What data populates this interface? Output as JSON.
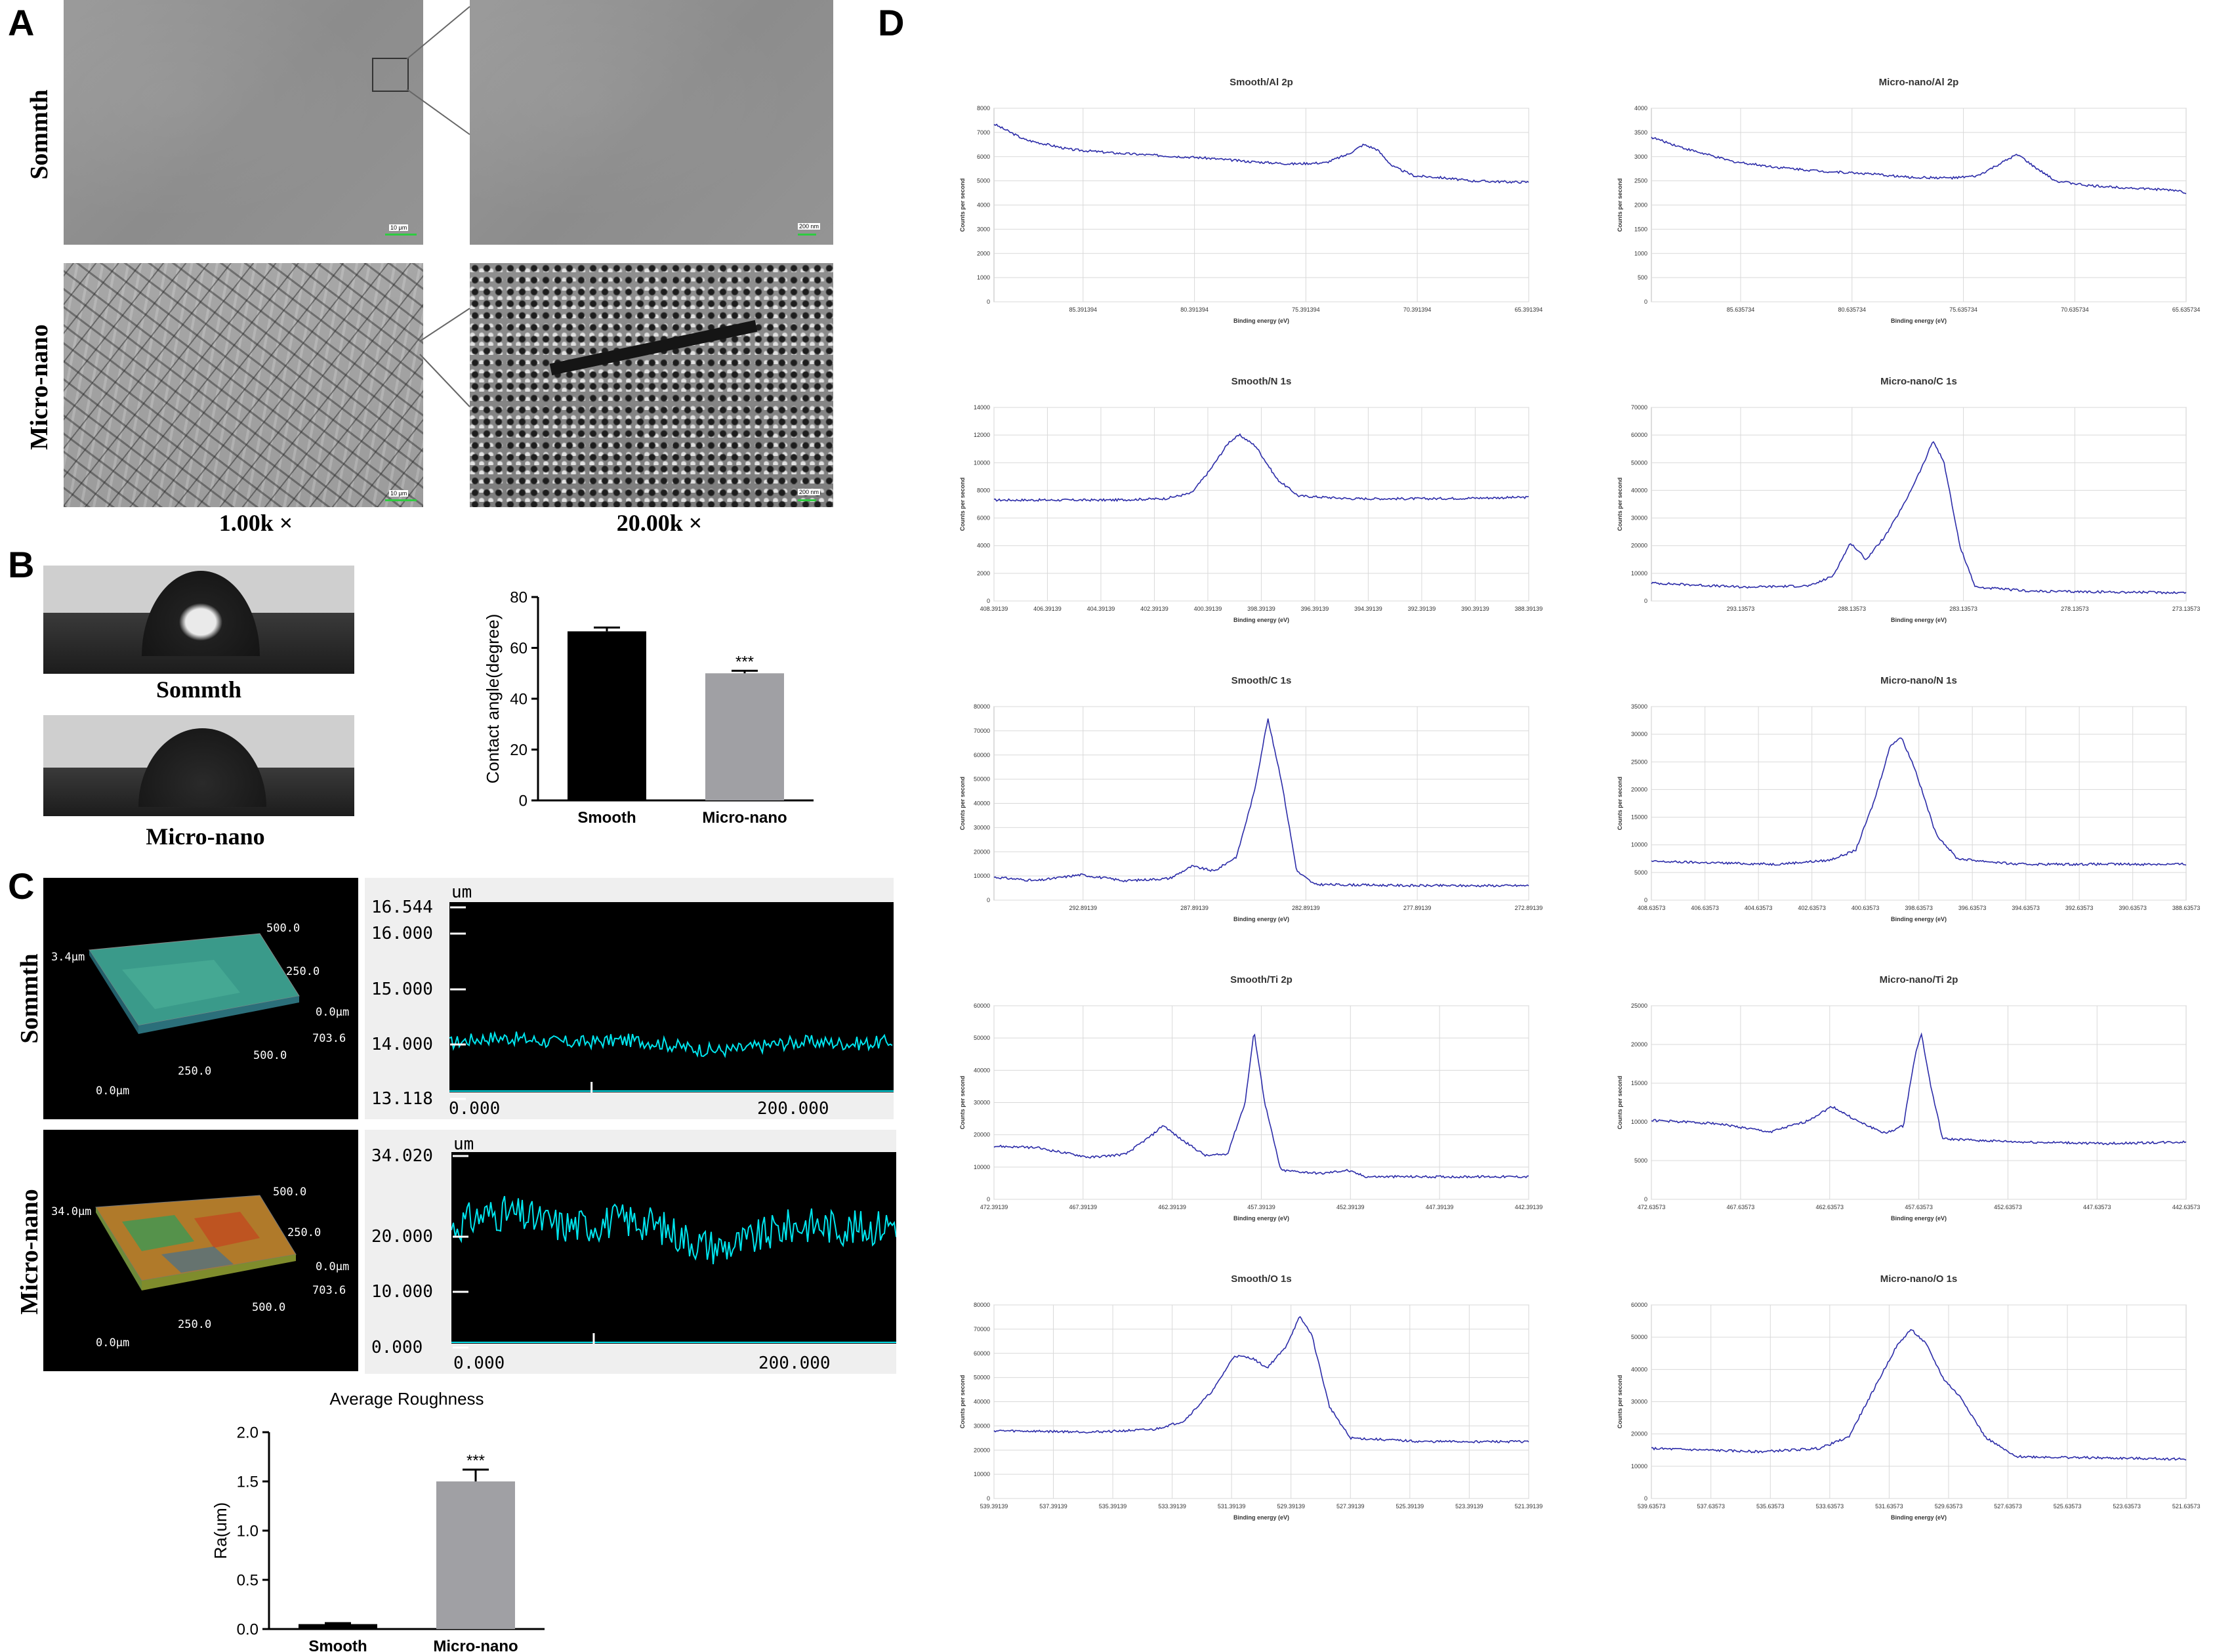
{
  "panels": {
    "A": {
      "label": "A",
      "rows": [
        "Sommth",
        "Micro-nano"
      ],
      "magnifications": [
        "1.00k ×",
        "20.00k ×"
      ],
      "scale_low": "10 μm",
      "scale_high": "200 nm"
    },
    "B": {
      "label": "B",
      "images": [
        "Sommth",
        "Micro-nano"
      ]
    },
    "C": {
      "label": "C",
      "rows": [
        "Sommth",
        "Micro-nano"
      ],
      "surface_3d": [
        {
          "z_max": "3.4μm",
          "y_mid": "250.0",
          "y_max": "500.0",
          "x_mid": "250.0",
          "x_max": "500.0",
          "x_end": "703.6",
          "origin": "0.0μm",
          "y0": "0.0μm"
        },
        {
          "z_max": "34.0μm",
          "y_mid": "250.0",
          "y_max": "500.0",
          "x_mid": "250.0",
          "x_max": "500.0",
          "x_end": "703.6",
          "origin": "0.0μm",
          "y0": "0.0μm"
        }
      ],
      "profiles": [
        {
          "unit": "um",
          "y_ticks": [
            "16.544",
            "16.000",
            "15.000",
            "14.000",
            "13.118"
          ],
          "x_ticks": [
            "0.000",
            "200.000"
          ]
        },
        {
          "unit": "um",
          "y_ticks": [
            "34.020",
            "20.000",
            "10.000",
            "0.000"
          ],
          "x_ticks": [
            "0.000",
            "200.000"
          ]
        }
      ]
    },
    "D": {
      "label": "D",
      "x_axis_label": "Binding energy (eV)",
      "y_axis_label": "Counts per second"
    }
  },
  "chart_data": [
    {
      "id": "contact-angle",
      "type": "bar",
      "categories": [
        "Smooth",
        "Micro-nano"
      ],
      "values": [
        66.5,
        50
      ],
      "errors": [
        1.5,
        1
      ],
      "significance": [
        "",
        "***"
      ],
      "colors": [
        "#000000",
        "#a0a0a4"
      ],
      "ylabel": "Contact angle(degree)",
      "ylim": [
        0,
        80
      ],
      "yticks": [
        0,
        20,
        40,
        60,
        80
      ]
    },
    {
      "id": "average-roughness",
      "type": "bar",
      "title": "Average Roughness",
      "categories": [
        "Smooth",
        "Micro-nano"
      ],
      "values": [
        0.05,
        1.5
      ],
      "errors": [
        0.01,
        0.12
      ],
      "significance": [
        "",
        "***"
      ],
      "colors": [
        "#000000",
        "#a0a0a4"
      ],
      "ylabel": "Ra(um)",
      "ylim": [
        0,
        2.0
      ],
      "yticks": [
        "0.0",
        "0.5",
        "1.0",
        "1.5",
        "2.0"
      ]
    },
    {
      "id": "xps-smooth-al2p",
      "type": "line",
      "title": "Smooth/Al 2p",
      "ylim": [
        0,
        8000
      ],
      "yticks": [
        0,
        1000,
        2000,
        3000,
        4000,
        5000,
        6000,
        7000,
        8000
      ],
      "xticks": [
        "85.391394",
        "80.391394",
        "75.391394",
        "70.391394",
        "65.391394"
      ],
      "x_start": 89.39,
      "x_end": 65.39,
      "points": [
        [
          89.39,
          7350
        ],
        [
          88,
          6700
        ],
        [
          86,
          6300
        ],
        [
          84,
          6150
        ],
        [
          82,
          6050
        ],
        [
          80,
          5950
        ],
        [
          78,
          5800
        ],
        [
          76,
          5700
        ],
        [
          74.5,
          5750
        ],
        [
          73.5,
          6100
        ],
        [
          72.8,
          6500
        ],
        [
          72.2,
          6300
        ],
        [
          71.5,
          5600
        ],
        [
          70.5,
          5200
        ],
        [
          69.5,
          5150
        ],
        [
          68,
          5000
        ],
        [
          66,
          4950
        ],
        [
          65.39,
          4950
        ]
      ]
    },
    {
      "id": "xps-micronano-al2p",
      "type": "line",
      "title": "Micro-nano/Al 2p",
      "ylim": [
        0,
        4000
      ],
      "yticks": [
        0,
        500,
        1000,
        1500,
        2000,
        2500,
        3000,
        3500,
        4000
      ],
      "xticks": [
        "85.635734",
        "80.635734",
        "75.635734",
        "70.635734",
        "65.635734"
      ],
      "x_start": 89.64,
      "x_end": 65.64,
      "points": [
        [
          89.64,
          3400
        ],
        [
          88,
          3150
        ],
        [
          86,
          2900
        ],
        [
          84,
          2780
        ],
        [
          82,
          2700
        ],
        [
          80,
          2650
        ],
        [
          78,
          2570
        ],
        [
          76,
          2560
        ],
        [
          75,
          2600
        ],
        [
          74,
          2850
        ],
        [
          73.2,
          3050
        ],
        [
          72.5,
          2800
        ],
        [
          71.5,
          2500
        ],
        [
          70,
          2400
        ],
        [
          68,
          2350
        ],
        [
          66,
          2300
        ],
        [
          65.64,
          2250
        ]
      ]
    },
    {
      "id": "xps-smooth-n1s",
      "type": "line",
      "title": "Smooth/N 1s",
      "ylim": [
        0,
        14000
      ],
      "yticks": [
        0,
        2000,
        4000,
        6000,
        8000,
        10000,
        12000,
        14000
      ],
      "xticks": [
        "408.39139",
        "406.39139",
        "404.39139",
        "402.39139",
        "400.39139",
        "398.39139",
        "396.39139",
        "394.39139",
        "392.39139",
        "390.39139",
        "388.39139"
      ],
      "x_start": 408.39,
      "x_end": 388.39,
      "points": [
        [
          408.39,
          7300
        ],
        [
          404,
          7300
        ],
        [
          402,
          7400
        ],
        [
          401,
          7800
        ],
        [
          400.3,
          9500
        ],
        [
          399.6,
          11500
        ],
        [
          399.2,
          12000
        ],
        [
          398.6,
          11200
        ],
        [
          397.8,
          8800
        ],
        [
          397,
          7600
        ],
        [
          395,
          7400
        ],
        [
          392,
          7400
        ],
        [
          388.39,
          7500
        ]
      ]
    },
    {
      "id": "xps-micronano-c1s",
      "type": "line",
      "title": "Micro-nano/C 1s",
      "ylim": [
        0,
        70000
      ],
      "yticks": [
        0,
        10000,
        20000,
        30000,
        40000,
        50000,
        60000,
        70000
      ],
      "xticks": [
        "293.13573",
        "288.13573",
        "283.13573",
        "278.13573",
        "273.13573"
      ],
      "x_start": 297.14,
      "x_end": 273.14,
      "points": [
        [
          297.14,
          6500
        ],
        [
          293,
          5000
        ],
        [
          290,
          5500
        ],
        [
          289,
          9000
        ],
        [
          288.2,
          21000
        ],
        [
          287.5,
          15000
        ],
        [
          286.6,
          24000
        ],
        [
          285.8,
          35000
        ],
        [
          284.9,
          50000
        ],
        [
          284.5,
          58000
        ],
        [
          284,
          50000
        ],
        [
          283.3,
          20000
        ],
        [
          282.6,
          5000
        ],
        [
          280,
          3500
        ],
        [
          273.14,
          3000
        ]
      ]
    },
    {
      "id": "xps-smooth-c1s",
      "type": "line",
      "title": "Smooth/C 1s",
      "ylim": [
        0,
        80000
      ],
      "yticks": [
        0,
        10000,
        20000,
        30000,
        40000,
        50000,
        60000,
        70000,
        80000
      ],
      "xticks": [
        "292.89139",
        "287.89139",
        "282.89139",
        "277.89139",
        "272.89139"
      ],
      "x_start": 296.89,
      "x_end": 272.89,
      "points": [
        [
          296.89,
          9500
        ],
        [
          295,
          8000
        ],
        [
          293,
          10500
        ],
        [
          291,
          8000
        ],
        [
          289,
          9000
        ],
        [
          288,
          14000
        ],
        [
          287,
          12000
        ],
        [
          286,
          18000
        ],
        [
          285.2,
          45000
        ],
        [
          284.6,
          75000
        ],
        [
          284,
          50000
        ],
        [
          283.3,
          12000
        ],
        [
          282.5,
          6500
        ],
        [
          278,
          6000
        ],
        [
          272.89,
          6000
        ]
      ]
    },
    {
      "id": "xps-micronano-n1s",
      "type": "line",
      "title": "Micro-nano/N 1s",
      "ylim": [
        0,
        35000
      ],
      "yticks": [
        0,
        5000,
        10000,
        15000,
        20000,
        25000,
        30000,
        35000
      ],
      "xticks": [
        "408.63573",
        "406.63573",
        "404.63573",
        "402.63573",
        "400.63573",
        "398.63573",
        "396.63573",
        "394.63573",
        "392.63573",
        "390.63573",
        "388.63573"
      ],
      "x_start": 408.64,
      "x_end": 388.64,
      "points": [
        [
          408.64,
          7000
        ],
        [
          404,
          6500
        ],
        [
          402,
          7200
        ],
        [
          401,
          9000
        ],
        [
          400.3,
          18000
        ],
        [
          399.7,
          28000
        ],
        [
          399.3,
          29500
        ],
        [
          398.8,
          24000
        ],
        [
          398,
          12000
        ],
        [
          397.2,
          7500
        ],
        [
          395,
          6500
        ],
        [
          390,
          6500
        ],
        [
          388.64,
          6500
        ]
      ]
    },
    {
      "id": "xps-smooth-ti2p",
      "type": "line",
      "title": "Smooth/Ti 2p",
      "ylim": [
        0,
        60000
      ],
      "yticks": [
        0,
        10000,
        20000,
        30000,
        40000,
        50000,
        60000
      ],
      "xticks": [
        "472.39139",
        "467.39139",
        "462.39139",
        "457.39139",
        "452.39139",
        "447.39139",
        "442.39139"
      ],
      "x_start": 472.39,
      "x_end": 442.39,
      "points": [
        [
          472.39,
          16500
        ],
        [
          470,
          16000
        ],
        [
          467,
          13000
        ],
        [
          465,
          14000
        ],
        [
          463.5,
          20000
        ],
        [
          462.9,
          23000
        ],
        [
          462,
          19000
        ],
        [
          460.5,
          13500
        ],
        [
          459.3,
          14000
        ],
        [
          458.3,
          30000
        ],
        [
          457.8,
          52000
        ],
        [
          457.2,
          30000
        ],
        [
          456.3,
          9000
        ],
        [
          454,
          8000
        ],
        [
          452.6,
          9000
        ],
        [
          451.5,
          7000
        ],
        [
          447,
          7000
        ],
        [
          442.39,
          7000
        ]
      ]
    },
    {
      "id": "xps-micronano-ti2p",
      "type": "line",
      "title": "Micro-nano/Ti 2p",
      "ylim": [
        0,
        25000
      ],
      "yticks": [
        0,
        5000,
        10000,
        15000,
        20000,
        25000
      ],
      "xticks": [
        "472.63573",
        "467.63573",
        "462.63573",
        "457.63573",
        "452.63573",
        "447.63573",
        "442.63573"
      ],
      "x_start": 472.64,
      "x_end": 442.64,
      "points": [
        [
          472.64,
          10200
        ],
        [
          469,
          9800
        ],
        [
          466,
          8700
        ],
        [
          464,
          10000
        ],
        [
          462.5,
          12000
        ],
        [
          461,
          10000
        ],
        [
          459.5,
          8500
        ],
        [
          458.5,
          9500
        ],
        [
          457.9,
          18000
        ],
        [
          457.5,
          21500
        ],
        [
          457,
          15000
        ],
        [
          456.3,
          7800
        ],
        [
          452,
          7400
        ],
        [
          447,
          7200
        ],
        [
          442.64,
          7400
        ]
      ]
    },
    {
      "id": "xps-smooth-o1s",
      "type": "line",
      "title": "Smooth/O 1s",
      "ylim": [
        0,
        80000
      ],
      "yticks": [
        0,
        10000,
        20000,
        30000,
        40000,
        50000,
        60000,
        70000,
        80000
      ],
      "xticks": [
        "539.39139",
        "537.39139",
        "535.39139",
        "533.39139",
        "531.39139",
        "529.39139",
        "527.39139",
        "525.39139",
        "523.39139",
        "521.39139"
      ],
      "x_start": 539.39,
      "x_end": 521.39,
      "points": [
        [
          539.39,
          28000
        ],
        [
          536,
          27500
        ],
        [
          534,
          28500
        ],
        [
          533,
          32000
        ],
        [
          532,
          45000
        ],
        [
          531.3,
          59000
        ],
        [
          530.7,
          58000
        ],
        [
          530.2,
          54000
        ],
        [
          529.6,
          62000
        ],
        [
          529.1,
          75000
        ],
        [
          528.7,
          68000
        ],
        [
          528.1,
          38000
        ],
        [
          527.4,
          25000
        ],
        [
          525,
          23500
        ],
        [
          521.39,
          23500
        ]
      ]
    },
    {
      "id": "xps-micronano-o1s",
      "type": "line",
      "title": "Micro-nano/O 1s",
      "ylim": [
        0,
        60000
      ],
      "yticks": [
        0,
        10000,
        20000,
        30000,
        40000,
        50000,
        60000
      ],
      "xticks": [
        "539.63573",
        "537.63573",
        "535.63573",
        "533.63573",
        "531.63573",
        "529.63573",
        "527.63573",
        "525.63573",
        "523.63573",
        "521.63573"
      ],
      "x_start": 539.64,
      "x_end": 521.64,
      "points": [
        [
          539.64,
          15500
        ],
        [
          536,
          14500
        ],
        [
          534,
          15500
        ],
        [
          533,
          19000
        ],
        [
          532.2,
          33000
        ],
        [
          531.4,
          47000
        ],
        [
          530.9,
          52500
        ],
        [
          530.4,
          48000
        ],
        [
          529.8,
          37000
        ],
        [
          529.2,
          31000
        ],
        [
          528.4,
          19000
        ],
        [
          527.4,
          13000
        ],
        [
          524,
          12500
        ],
        [
          521.64,
          12200
        ]
      ]
    }
  ]
}
